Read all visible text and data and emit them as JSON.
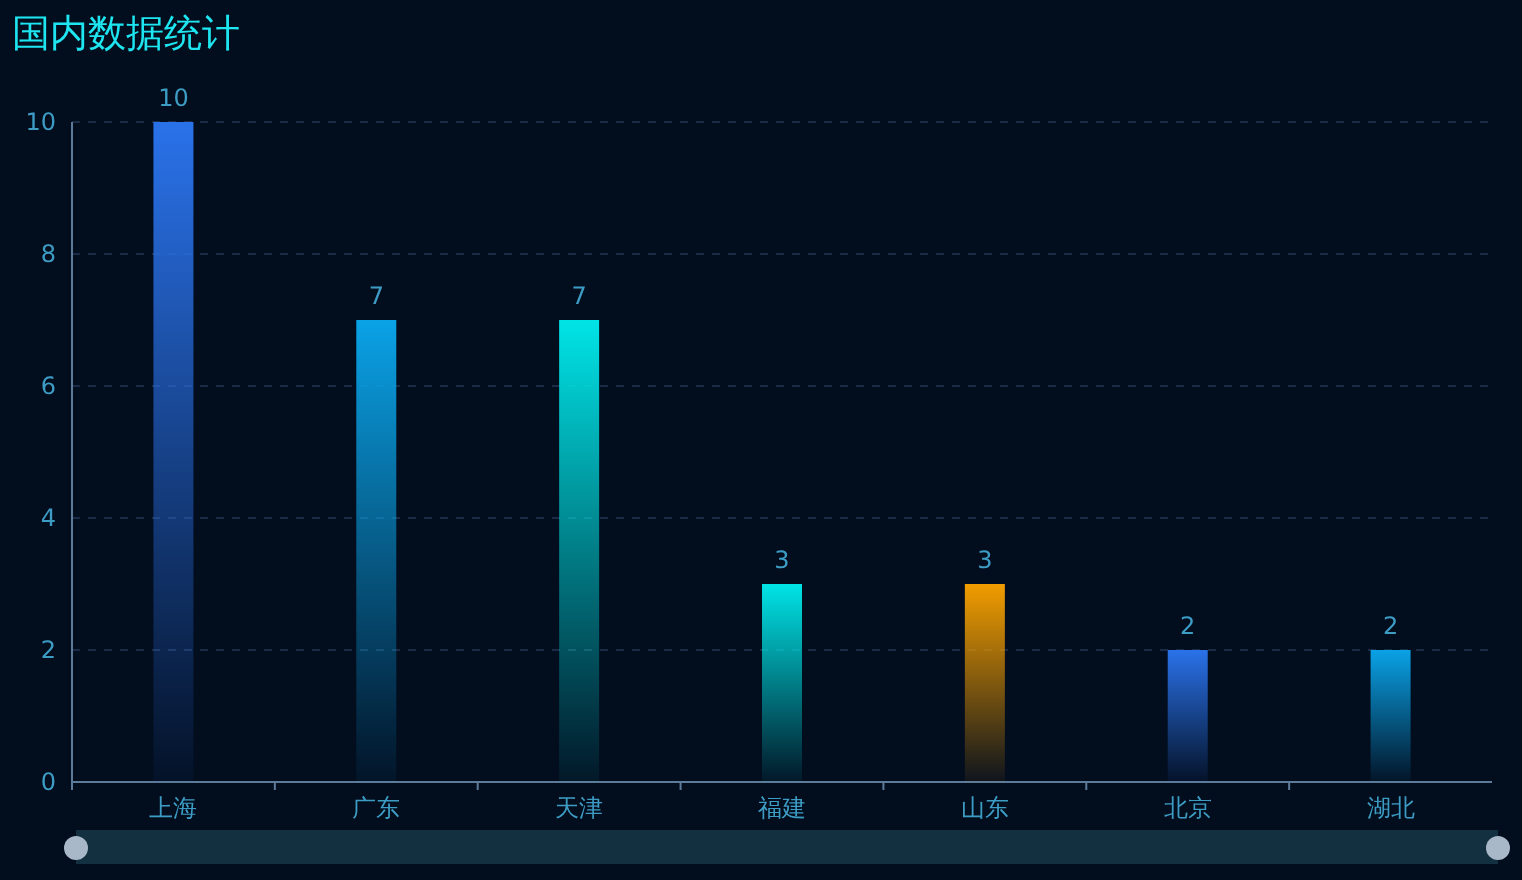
{
  "chart_data": {
    "type": "bar",
    "title": "国内数据统计",
    "categories": [
      "上海",
      "广东",
      "天津",
      "福建",
      "山东",
      "北京",
      "湖北"
    ],
    "values": [
      10,
      7,
      7,
      3,
      3,
      2,
      2
    ],
    "colors": [
      "#2a72ea",
      "#0aa2e6",
      "#00e4e6",
      "#00e4e6",
      "#f29d00",
      "#2a72ea",
      "#0aa2e6"
    ],
    "ylim": [
      0,
      10
    ],
    "yticks": [
      0,
      2,
      4,
      6,
      8,
      10
    ],
    "grid": "y",
    "data_labels": true
  }
}
